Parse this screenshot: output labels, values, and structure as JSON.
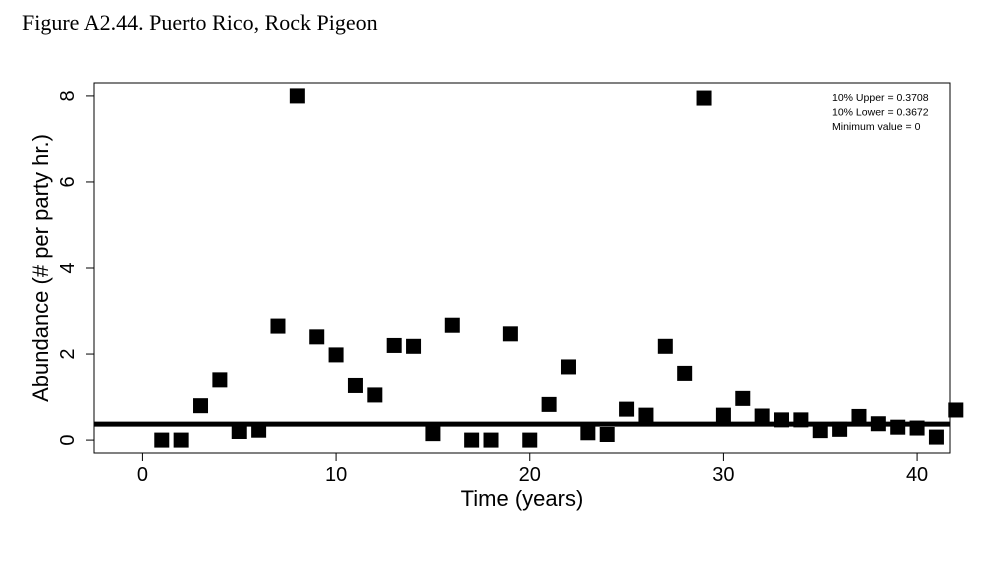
{
  "figure_title": "Figure A2.44. Puerto Rico, Rock Pigeon",
  "chart_data": {
    "type": "scatter",
    "title": "",
    "xlabel": "Time (years)",
    "ylabel": "Abundance (# per party hr.)",
    "xlim": [
      -2.5,
      41.7
    ],
    "ylim": [
      -0.3,
      8.3
    ],
    "xticks": [
      0,
      10,
      20,
      30,
      40
    ],
    "yticks": [
      0,
      2,
      4,
      6,
      8
    ],
    "grid": false,
    "marker": "square",
    "marker_color": "#000000",
    "series": [
      {
        "x": [
          1,
          2,
          3,
          4,
          5,
          6,
          7,
          8,
          9,
          10,
          11,
          12,
          13,
          14,
          15,
          16,
          17,
          18,
          19,
          20,
          21,
          22,
          23,
          24,
          25,
          26,
          27,
          28,
          29,
          30,
          31,
          32,
          33,
          34,
          35,
          36,
          37,
          38,
          39,
          40,
          41,
          42
        ],
        "y": [
          0,
          0,
          0.8,
          1.4,
          0.2,
          0.23,
          2.65,
          8.0,
          2.4,
          1.98,
          1.27,
          1.05,
          2.2,
          2.18,
          0.15,
          2.67,
          0,
          0,
          2.47,
          0,
          0.83,
          1.7,
          0.17,
          0.13,
          0.72,
          0.58,
          2.18,
          1.55,
          7.95,
          0.58,
          0.97,
          0.56,
          0.47,
          0.47,
          0.22,
          0.25,
          0.55,
          0.38,
          0.3,
          0.28,
          0.07,
          0.7
        ]
      }
    ],
    "reference_line": {
      "y": 0.37,
      "color": "#000000"
    },
    "annotations": [
      {
        "label": "10% Upper =",
        "value": "0.3708"
      },
      {
        "label": "10% Lower =",
        "value": "0.3672"
      },
      {
        "label": "Minimum value =",
        "value": "0"
      }
    ],
    "annotation_placement": "top-right"
  }
}
